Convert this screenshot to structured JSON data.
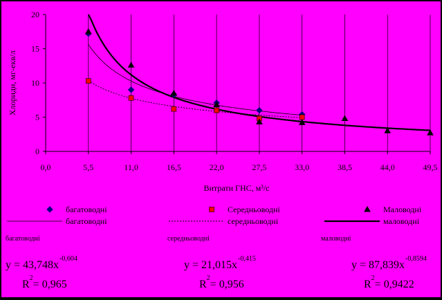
{
  "chart_data": {
    "type": "scatter",
    "xlabel": "Витрати ГНС, м³/с",
    "ylabel": "Хлориди, мг-екв/л",
    "xlim": [
      0,
      49.5
    ],
    "ylim": [
      0,
      20
    ],
    "x_ticks": [
      "0,0",
      "5,5",
      "11,0",
      "16,5",
      "22,0",
      "27,5",
      "33,0",
      "38,5",
      "44,0",
      "49,5"
    ],
    "y_ticks": [
      "0",
      "5",
      "10",
      "15",
      "20"
    ],
    "grid": "vertical",
    "legend_position": "bottom",
    "series": [
      {
        "name": "багатоводні",
        "marker": "diamond",
        "color": "#000080",
        "points": [
          [
            5.5,
            17.2
          ],
          [
            11.0,
            9.0
          ],
          [
            16.5,
            8.3
          ],
          [
            22.0,
            7.1
          ],
          [
            27.5,
            6.0
          ],
          [
            33.0,
            5.4
          ]
        ],
        "fit": {
          "a": 43.748,
          "b": -0.604,
          "style": "thin",
          "legend": "багатоводні"
        }
      },
      {
        "name": "Середньоводні",
        "marker": "square",
        "color": "#ff0000",
        "points": [
          [
            5.5,
            10.3
          ],
          [
            11.0,
            7.8
          ],
          [
            16.5,
            6.2
          ],
          [
            22.0,
            6.0
          ],
          [
            27.5,
            4.8
          ],
          [
            33.0,
            5.0
          ]
        ],
        "fit": {
          "a": 21.015,
          "b": -0.415,
          "style": "dotted",
          "legend": "середньоводні"
        }
      },
      {
        "name": "Маловодні",
        "marker": "triangle",
        "color": "#000000",
        "points": [
          [
            5.5,
            17.5
          ],
          [
            11.0,
            12.6
          ],
          [
            16.5,
            8.5
          ],
          [
            22.0,
            6.8
          ],
          [
            27.5,
            4.3
          ],
          [
            33.0,
            4.2
          ],
          [
            38.5,
            4.8
          ],
          [
            44.0,
            3.0
          ],
          [
            49.5,
            2.7
          ]
        ],
        "fit": {
          "a": 87.839,
          "b": -0.8594,
          "style": "thick",
          "legend": "маловодні"
        }
      }
    ],
    "equations": [
      {
        "label": "багатоводні",
        "eq_main": "y = 43,748x",
        "eq_exp": "-0,604",
        "r2_base": "R",
        "r2_exp": "2",
        "r2_value": " = 0,965"
      },
      {
        "label": "середньоводні",
        "eq_main": "y = 21,015x",
        "eq_exp": "-0,415",
        "r2_base": "R",
        "r2_exp": "2",
        "r2_value": " = 0,956"
      },
      {
        "label": "маловодні",
        "eq_main": "y = 87,839x",
        "eq_exp": "-0,8594",
        "r2_base": "R",
        "r2_exp": "2",
        "r2_value": " = 0,9422"
      }
    ]
  }
}
